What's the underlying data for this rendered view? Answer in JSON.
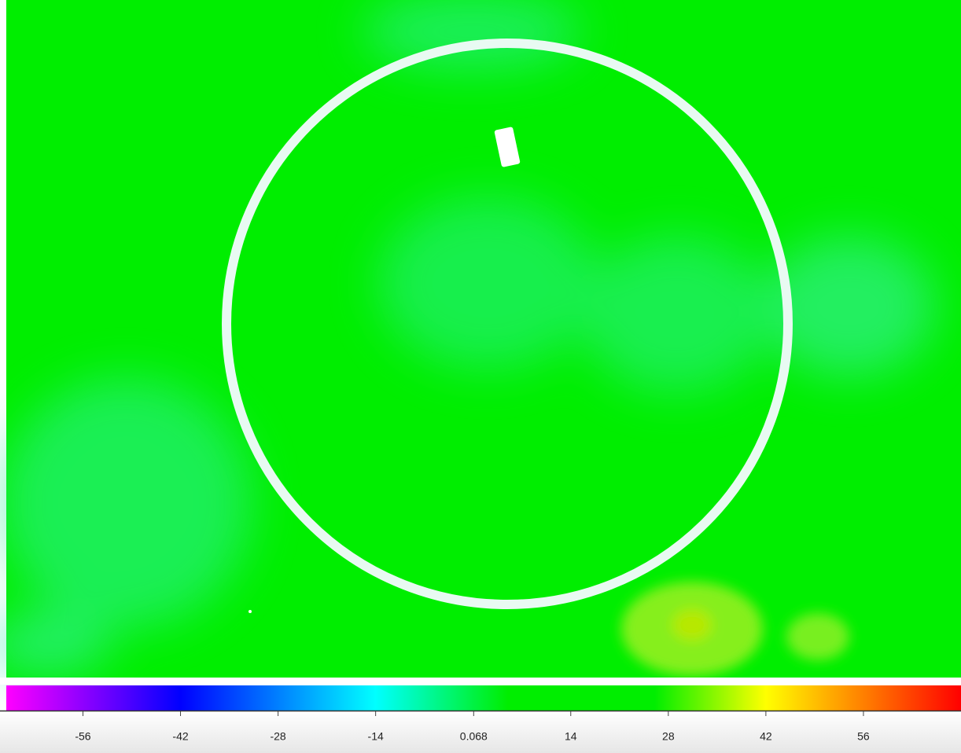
{
  "chart_data": {
    "type": "heatmap",
    "colorbar": {
      "clim": [
        -67,
        70
      ],
      "cticks": [
        -56,
        -42,
        -28,
        -14,
        0.068,
        14,
        28,
        42,
        56
      ],
      "stops": [
        {
          "value": -67,
          "color": "#ff00ff"
        },
        {
          "value": -42,
          "color": "#0000ff"
        },
        {
          "value": -14,
          "color": "#00ffff"
        },
        {
          "value": 5,
          "color": "#00ee00"
        },
        {
          "value": 26,
          "color": "#00ee00"
        },
        {
          "value": 42,
          "color": "#ffff00"
        },
        {
          "value": 70,
          "color": "#ff0000"
        }
      ]
    }
  }
}
